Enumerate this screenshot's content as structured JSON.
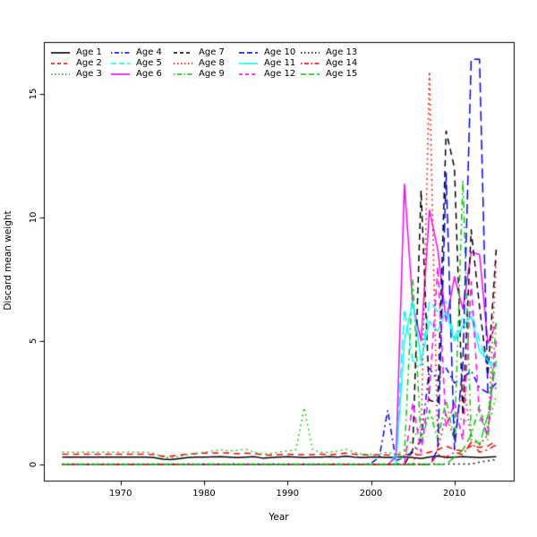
{
  "figure": {
    "background": "#ffffff"
  },
  "chart_data": {
    "type": "line",
    "title": "",
    "xlabel": "Year",
    "ylabel": "Discard mean weight",
    "xlim": [
      1960.8,
      2017.1
    ],
    "ylim": [
      -0.65,
      17.1
    ],
    "x_ticks": [
      1970,
      1980,
      1990,
      2000,
      2010
    ],
    "y_ticks": [
      0,
      5,
      10,
      15
    ],
    "grid": false,
    "legend_position": "top-left-inside",
    "legend_columns": 5,
    "x": [
      1963,
      1964,
      1965,
      1966,
      1967,
      1968,
      1969,
      1970,
      1971,
      1972,
      1973,
      1974,
      1975,
      1976,
      1977,
      1978,
      1979,
      1980,
      1981,
      1982,
      1983,
      1984,
      1985,
      1986,
      1987,
      1988,
      1989,
      1990,
      1991,
      1992,
      1993,
      1994,
      1995,
      1996,
      1997,
      1998,
      1999,
      2000,
      2001,
      2002,
      2003,
      2004,
      2005,
      2006,
      2007,
      2008,
      2009,
      2010,
      2011,
      2012,
      2013,
      2014,
      2015
    ],
    "series": [
      {
        "name": "Age 1",
        "color": "#000000",
        "linestyle": "solid",
        "values": [
          0.3,
          0.3,
          0.3,
          0.3,
          0.3,
          0.3,
          0.3,
          0.3,
          0.3,
          0.3,
          0.3,
          0.28,
          0.22,
          0.2,
          0.24,
          0.28,
          0.3,
          0.3,
          0.31,
          0.32,
          0.3,
          0.28,
          0.3,
          0.32,
          0.26,
          0.28,
          0.3,
          0.32,
          0.3,
          0.28,
          0.3,
          0.3,
          0.32,
          0.3,
          0.34,
          0.3,
          0.28,
          0.3,
          0.3,
          0.28,
          0.3,
          0.32,
          0.28,
          0.25,
          0.3,
          0.35,
          0.28,
          0.3,
          0.32,
          0.3,
          0.28,
          0.3,
          0.32
        ]
      },
      {
        "name": "Age 2",
        "color": "#ff0000",
        "linestyle": "dashed",
        "values": [
          0.42,
          0.42,
          0.42,
          0.42,
          0.42,
          0.42,
          0.42,
          0.42,
          0.42,
          0.42,
          0.42,
          0.4,
          0.34,
          0.34,
          0.38,
          0.42,
          0.44,
          0.46,
          0.46,
          0.48,
          0.46,
          0.44,
          0.46,
          0.44,
          0.4,
          0.38,
          0.4,
          0.42,
          0.4,
          0.4,
          0.4,
          0.42,
          0.4,
          0.42,
          0.46,
          0.42,
          0.4,
          0.38,
          0.4,
          0.38,
          0.4,
          0.42,
          0.38,
          0.4,
          0.5,
          0.6,
          0.75,
          0.6,
          0.55,
          0.75,
          0.7,
          0.75,
          0.95
        ]
      },
      {
        "name": "Age 3",
        "color": "#00cd00",
        "linestyle": "dotted",
        "values": [
          0.5,
          0.5,
          0.5,
          0.5,
          0.5,
          0.5,
          0.5,
          0.5,
          0.5,
          0.5,
          0.5,
          0.45,
          0.3,
          0.28,
          0.32,
          0.4,
          0.45,
          0.5,
          0.55,
          0.6,
          0.55,
          0.58,
          0.62,
          0.5,
          0.42,
          0.45,
          0.5,
          0.55,
          0.6,
          2.3,
          0.6,
          0.5,
          0.5,
          0.55,
          0.62,
          0.5,
          0.42,
          0.4,
          0.42,
          0.5,
          0.4,
          0.6,
          1.0,
          1.6,
          1.9,
          1.8,
          1.9,
          2.0,
          1.8,
          1.7,
          1.8,
          1.5,
          2.8
        ]
      },
      {
        "name": "Age 4",
        "color": "#0000ff",
        "linestyle": "dashdot",
        "values": [
          0,
          0,
          0,
          0,
          0,
          0,
          0,
          0,
          0,
          0,
          0,
          0,
          0,
          0,
          0,
          0,
          0,
          0,
          0,
          0,
          0,
          0,
          0,
          0,
          0,
          0,
          0,
          0,
          0,
          0,
          0,
          0,
          0,
          0,
          0,
          0,
          0,
          0.05,
          0.3,
          2.2,
          0.15,
          0.3,
          0.5,
          1.0,
          3.9,
          3.4,
          3.9,
          3.3,
          3.5,
          3.8,
          3.1,
          2.9,
          3.1
        ]
      },
      {
        "name": "Age 5",
        "color": "#00ffff",
        "linestyle": "longdash",
        "values": [
          0,
          0,
          0,
          0,
          0,
          0,
          0,
          0,
          0,
          0,
          0,
          0,
          0,
          0,
          0,
          0,
          0,
          0,
          0,
          0,
          0,
          0,
          0,
          0,
          0,
          0,
          0,
          0,
          0,
          0,
          0,
          0,
          0,
          0,
          0,
          0,
          0,
          0,
          0,
          0,
          0.4,
          6.3,
          4.2,
          4.0,
          6.6,
          6.2,
          6.6,
          5.1,
          6.0,
          6.2,
          5.0,
          4.1,
          3.9
        ]
      },
      {
        "name": "Age 6",
        "color": "#ff00ff",
        "linestyle": "solid",
        "values": [
          0,
          0,
          0,
          0,
          0,
          0,
          0,
          0,
          0,
          0,
          0,
          0,
          0,
          0,
          0,
          0,
          0,
          0,
          0,
          0,
          0,
          0,
          0,
          0,
          0,
          0,
          0,
          0,
          0,
          0,
          0,
          0,
          0,
          0,
          0,
          0,
          0,
          0,
          0,
          0,
          0.3,
          11.35,
          6.5,
          5.0,
          10.3,
          8.7,
          5.8,
          7.6,
          6.3,
          8.6,
          8.5,
          4.9,
          5.7
        ]
      },
      {
        "name": "Age 7",
        "color": "#000000",
        "linestyle": "dashed",
        "values": [
          0,
          0,
          0,
          0,
          0,
          0,
          0,
          0,
          0,
          0,
          0,
          0,
          0,
          0,
          0,
          0,
          0,
          0,
          0,
          0,
          0,
          0,
          0,
          0,
          0,
          0,
          0,
          0,
          0,
          0,
          0,
          0,
          0,
          0,
          0,
          0,
          0,
          0,
          0,
          0,
          0,
          0,
          0.6,
          11.1,
          2.6,
          2.5,
          13.5,
          12.0,
          2.0,
          9.5,
          6.4,
          3.6,
          8.7
        ]
      },
      {
        "name": "Age 8",
        "color": "#ff0000",
        "linestyle": "dotted",
        "values": [
          0,
          0,
          0,
          0,
          0,
          0,
          0,
          0,
          0,
          0,
          0,
          0,
          0,
          0,
          0,
          0,
          0,
          0,
          0,
          0,
          0,
          0,
          0,
          0,
          0,
          0,
          0,
          0,
          0,
          0,
          0,
          0,
          0,
          0,
          0,
          0,
          0,
          0,
          0,
          0,
          0,
          0,
          0,
          1.2,
          15.9,
          0.6,
          2.0,
          1.0,
          3.5,
          1.0,
          0.8,
          1.2,
          8.3
        ]
      },
      {
        "name": "Age 9",
        "color": "#00cd00",
        "linestyle": "dashdot",
        "values": [
          0,
          0,
          0,
          0,
          0,
          0,
          0,
          0,
          0,
          0,
          0,
          0,
          0,
          0,
          0,
          0,
          0,
          0,
          0,
          0,
          0,
          0,
          0,
          0,
          0,
          0,
          0,
          0,
          0,
          0,
          0,
          0,
          0,
          0,
          0,
          0,
          0,
          0,
          0,
          0,
          0,
          0.4,
          7.5,
          0.8,
          2.2,
          1.0,
          2.6,
          1.0,
          11.5,
          1.2,
          2.4,
          1.0,
          5.8
        ]
      },
      {
        "name": "Age 10",
        "color": "#0000ff",
        "linestyle": "longdash",
        "values": [
          0,
          0,
          0,
          0,
          0,
          0,
          0,
          0,
          0,
          0,
          0,
          0,
          0,
          0,
          0,
          0,
          0,
          0,
          0,
          0,
          0,
          0,
          0,
          0,
          0,
          0,
          0,
          0,
          0,
          0,
          0,
          0,
          0,
          0,
          0,
          0,
          0,
          0,
          0,
          0,
          0,
          0,
          0,
          0,
          0,
          0.6,
          11.8,
          0.6,
          4.0,
          16.4,
          16.4,
          2.9,
          3.3
        ]
      },
      {
        "name": "Age 11",
        "color": "#00ffff",
        "linestyle": "solid",
        "values": [
          0,
          0,
          0,
          0,
          0,
          0,
          0,
          0,
          0,
          0,
          0,
          0,
          0,
          0,
          0,
          0,
          0,
          0,
          0,
          0,
          0,
          0,
          0,
          0,
          0,
          0,
          0,
          0,
          0,
          0,
          0,
          0,
          0,
          0,
          0,
          0,
          0,
          0,
          0,
          0,
          0,
          5.0,
          6.6,
          4.2,
          5.8,
          5.4,
          6.2,
          5.0,
          5.6,
          6.0,
          4.6,
          4.2,
          4.0
        ]
      },
      {
        "name": "Age 12",
        "color": "#ff00ff",
        "linestyle": "dashed",
        "values": [
          0,
          0,
          0,
          0,
          0,
          0,
          0,
          0,
          0,
          0,
          0,
          0,
          0,
          0,
          0,
          0,
          0,
          0,
          0,
          0,
          0,
          0,
          0,
          0,
          0,
          0,
          0,
          0,
          0,
          0,
          0,
          0,
          0,
          0,
          0,
          0,
          0,
          0,
          0,
          0,
          0,
          0,
          2.5,
          0.5,
          3.0,
          8.0,
          1.5,
          2.5,
          1.0,
          7.4,
          2.0,
          1.2,
          5.0
        ]
      },
      {
        "name": "Age 13",
        "color": "#000000",
        "linestyle": "dotted",
        "values": [
          0.02,
          0.02,
          0.02,
          0.02,
          0.02,
          0.02,
          0.02,
          0.02,
          0.02,
          0.02,
          0.02,
          0.02,
          0.02,
          0.02,
          0.02,
          0.02,
          0.02,
          0.02,
          0.02,
          0.02,
          0.02,
          0.02,
          0.02,
          0.02,
          0.02,
          0.02,
          0.02,
          0.02,
          0.02,
          0.02,
          0.02,
          0.02,
          0.02,
          0.02,
          0.02,
          0.02,
          0.02,
          0.02,
          0.02,
          0.02,
          0.02,
          0.02,
          0.02,
          0.02,
          0.02,
          0.02,
          0.02,
          0.02,
          0.02,
          0.02,
          0.1,
          0.15,
          0.2
        ]
      },
      {
        "name": "Age 14",
        "color": "#ff0000",
        "linestyle": "dashdot",
        "values": [
          0,
          0,
          0,
          0,
          0,
          0,
          0,
          0,
          0,
          0,
          0,
          0,
          0,
          0,
          0,
          0,
          0,
          0,
          0,
          0,
          0,
          0,
          0,
          0,
          0,
          0,
          0,
          0,
          0,
          0,
          0,
          0,
          0,
          0,
          0,
          0,
          0,
          0,
          0,
          0,
          0,
          0,
          0,
          0,
          0,
          0.4,
          0.3,
          0.5,
          0.4,
          0.9,
          0.5,
          0.6,
          0.8
        ]
      },
      {
        "name": "Age 15",
        "color": "#00cd00",
        "linestyle": "longdash",
        "values": [
          0,
          0,
          0,
          0,
          0,
          0,
          0,
          0,
          0,
          0,
          0,
          0,
          0,
          0,
          0,
          0,
          0,
          0,
          0,
          0,
          0,
          0,
          0,
          0,
          0,
          0,
          0,
          0,
          0,
          0,
          0,
          0,
          0,
          0,
          0,
          0,
          0,
          0,
          0,
          0,
          0,
          0,
          0,
          0,
          0,
          0,
          0,
          0.3,
          0.6,
          1.2,
          0.8,
          2.0,
          4.2
        ]
      }
    ]
  }
}
